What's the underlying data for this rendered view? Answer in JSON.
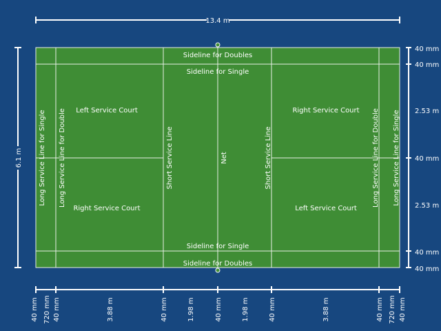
{
  "colors": {
    "background": "#17477f",
    "court": "#3f8d35",
    "lines": "#ffffff"
  },
  "dimensions": {
    "total_length": "13.4 m",
    "total_width": "6.1 m",
    "bottom": [
      "40 mm",
      "720 mm",
      "40 mm",
      "3.88 m",
      "40 mm",
      "1.98 m",
      "40 mm",
      "1.98 m",
      "40 mm",
      "3.88 m",
      "40 mm",
      "720 mm",
      "40 mm"
    ],
    "right": [
      "40 mm",
      "40 mm",
      "2.53 m",
      "40 mm",
      "2.53 m",
      "40 mm",
      "40 mm"
    ]
  },
  "court": {
    "sideline_doubles": "Sideline for Doubles",
    "sideline_single": "Sideline for Single",
    "left_service_court": "Left Service Court",
    "right_service_court": "Right Service Court",
    "long_service_single": "Long Service Line for Single",
    "long_service_double": "Long Service Line for Double",
    "short_service": "Short Service Line",
    "net": "Net"
  }
}
